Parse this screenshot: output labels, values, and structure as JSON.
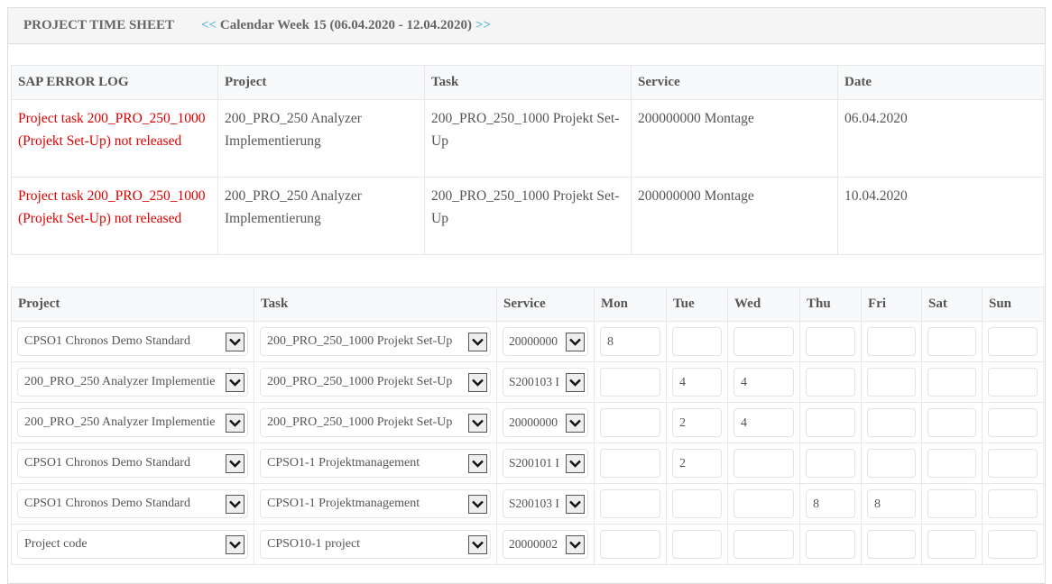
{
  "header": {
    "title": "PROJECT TIME SHEET",
    "prev": "<<",
    "week": "Calendar Week 15 (06.04.2020 - 12.04.2020)",
    "next": ">>"
  },
  "error_log": {
    "columns": [
      "SAP ERROR LOG",
      "Project",
      "Task",
      "Service",
      "Date"
    ],
    "rows": [
      {
        "error": "Project task 200_PRO_250_1000 (Projekt Set-Up) not released",
        "project": "200_PRO_250 Analyzer Implementierung",
        "task": "200_PRO_250_1000 Projekt Set-Up",
        "service": "200000000 Montage",
        "date": "06.04.2020"
      },
      {
        "error": "Project task 200_PRO_250_1000 (Projekt Set-Up) not released",
        "project": "200_PRO_250 Analyzer Implementierung",
        "task": "200_PRO_250_1000 Projekt Set-Up",
        "service": "200000000 Montage",
        "date": "10.04.2020"
      }
    ]
  },
  "timesheet": {
    "columns": [
      "Project",
      "Task",
      "Service",
      "Mon",
      "Tue",
      "Wed",
      "Thu",
      "Fri",
      "Sat",
      "Sun"
    ],
    "rows": [
      {
        "project": "CPSO1 Chronos Demo Standard",
        "task": "200_PRO_250_1000 Projekt Set-Up",
        "service": "20000000",
        "hours": [
          "8",
          "",
          "",
          "",
          "",
          "",
          ""
        ]
      },
      {
        "project": "200_PRO_250 Analyzer Implementie",
        "task": "200_PRO_250_1000 Projekt Set-Up",
        "service": "S200103 I",
        "hours": [
          "",
          "4",
          "4",
          "",
          "",
          "",
          ""
        ]
      },
      {
        "project": "200_PRO_250 Analyzer Implementie",
        "task": "200_PRO_250_1000 Projekt Set-Up",
        "service": "20000000",
        "hours": [
          "",
          "2",
          "4",
          "",
          "",
          "",
          ""
        ]
      },
      {
        "project": "CPSO1 Chronos Demo Standard",
        "task": "CPSO1-1 Projektmanagement",
        "service": "S200101 I",
        "hours": [
          "",
          "2",
          "",
          "",
          "",
          "",
          ""
        ]
      },
      {
        "project": "CPSO1 Chronos Demo Standard",
        "task": "CPSO1-1 Projektmanagement",
        "service": "S200103 I",
        "hours": [
          "",
          "",
          "",
          "8",
          "8",
          "",
          ""
        ]
      },
      {
        "project": "Project code",
        "task": "CPSO10-1 project",
        "service": "20000002",
        "hours": [
          "",
          "",
          "",
          "",
          "",
          "",
          ""
        ]
      }
    ]
  },
  "colors": {
    "accent": "#1a9bd7",
    "error": "#e00000"
  },
  "icons": {
    "dropdown": "chevron-down-icon"
  }
}
